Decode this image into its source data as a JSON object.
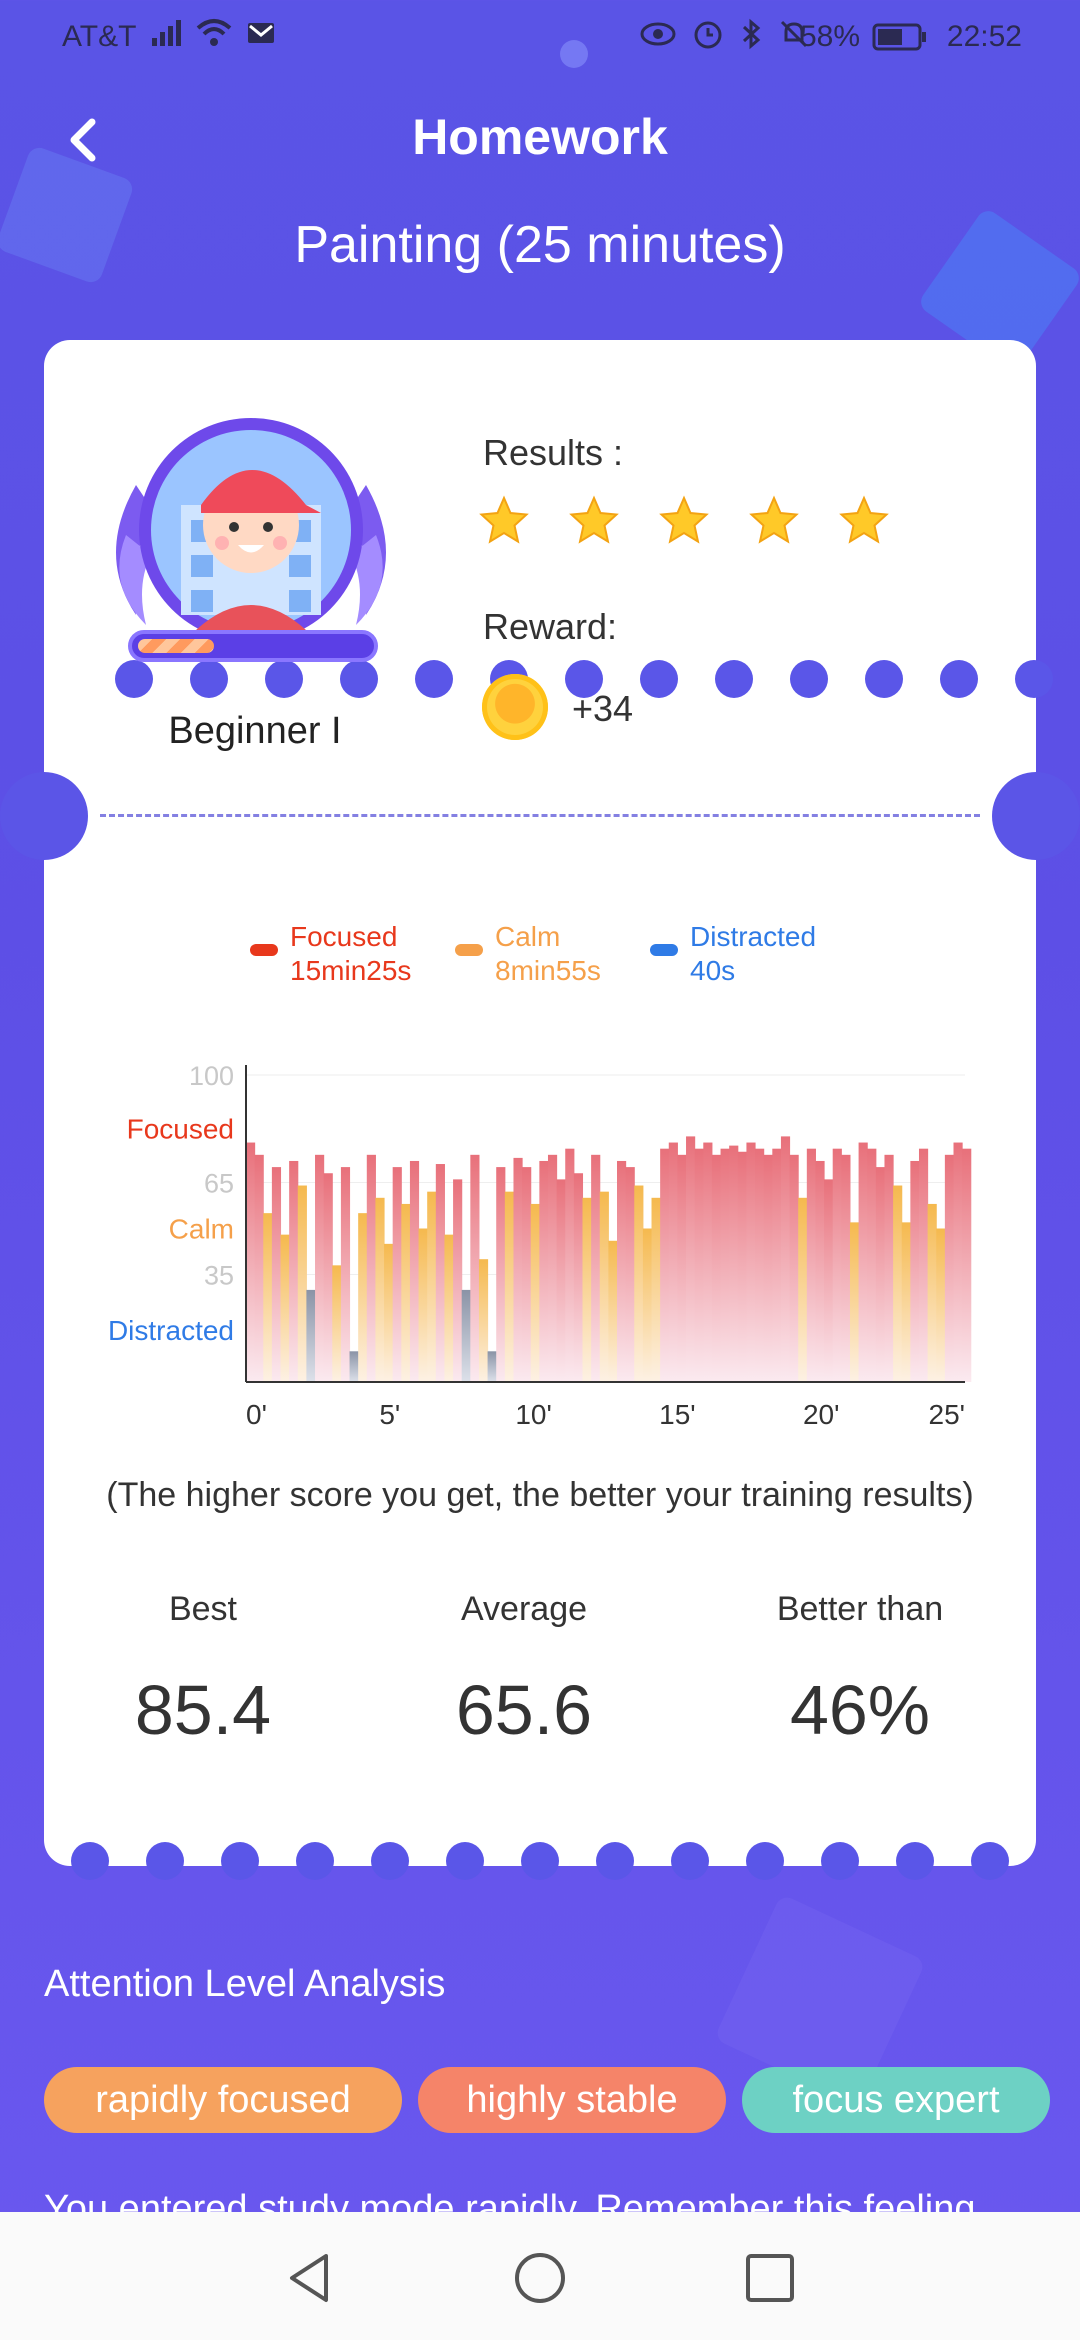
{
  "status_bar": {
    "carrier": "AT&T",
    "battery": "58%",
    "time": "22:52",
    "icons_left": [
      "signal-icon",
      "wifi-icon",
      "mail-icon"
    ],
    "icons_right": [
      "eye-icon",
      "alarm-icon",
      "bluetooth-icon",
      "mute-icon",
      "battery-icon"
    ]
  },
  "header": {
    "title": "Homework",
    "subtitle": "Painting (25 minutes)"
  },
  "profile": {
    "level_name": "Beginner I",
    "level_progress": 0.33
  },
  "results": {
    "label": "Results :",
    "stars": 5
  },
  "reward": {
    "label": "Reward:",
    "value": "+34"
  },
  "legend": [
    {
      "name": "Focused",
      "time": "15min25s",
      "color": "#e8381c"
    },
    {
      "name": "Calm",
      "time": "8min55s",
      "color": "#f5a04a"
    },
    {
      "name": "Distracted",
      "time": "40s",
      "color": "#2f7be6"
    }
  ],
  "chart_data": {
    "type": "area",
    "y_tick_labels": [
      "100",
      "65",
      "35"
    ],
    "y_band_labels": [
      "Focused",
      "Calm",
      "Distracted"
    ],
    "x_tick_labels": [
      "0'",
      "5'",
      "10'",
      "15'",
      "20'",
      "25'"
    ],
    "xlim": [
      0,
      25
    ],
    "ylim": [
      0,
      100
    ],
    "x": [
      0,
      0.3,
      0.6,
      0.9,
      1.2,
      1.5,
      1.8,
      2.1,
      2.4,
      2.7,
      3.0,
      3.3,
      3.6,
      3.9,
      4.2,
      4.5,
      4.8,
      5.1,
      5.4,
      5.7,
      6.0,
      6.3,
      6.6,
      6.9,
      7.2,
      7.5,
      7.8,
      8.1,
      8.4,
      8.7,
      9.0,
      9.3,
      9.6,
      9.9,
      10.2,
      10.5,
      10.8,
      11.1,
      11.4,
      11.7,
      12.0,
      12.3,
      12.6,
      12.9,
      13.2,
      13.5,
      13.8,
      14.1,
      14.4,
      14.7,
      15.0,
      15.3,
      15.6,
      15.9,
      16.2,
      16.5,
      16.8,
      17.1,
      17.4,
      17.7,
      18.0,
      18.3,
      18.6,
      18.9,
      19.2,
      19.5,
      19.8,
      20.1,
      20.4,
      20.7,
      21.0,
      21.3,
      21.6,
      21.9,
      22.2,
      22.5,
      22.8,
      23.1,
      23.4,
      23.7,
      24.0,
      24.3,
      24.6,
      24.9
    ],
    "values": [
      78,
      74,
      55,
      70,
      48,
      72,
      64,
      30,
      74,
      68,
      38,
      70,
      10,
      55,
      74,
      60,
      45,
      70,
      58,
      72,
      50,
      62,
      71,
      48,
      66,
      30,
      74,
      40,
      10,
      70,
      62,
      73,
      70,
      58,
      72,
      74,
      66,
      76,
      68,
      60,
      74,
      62,
      46,
      72,
      70,
      64,
      50,
      60,
      76,
      78,
      74,
      80,
      76,
      78,
      74,
      76,
      77,
      75,
      78,
      76,
      74,
      76,
      80,
      74,
      60,
      76,
      72,
      66,
      76,
      74,
      52,
      78,
      76,
      70,
      74,
      64,
      52,
      72,
      76,
      58,
      50,
      74,
      78,
      76
    ],
    "series_colors": {
      "focused": "#e8707a",
      "calm": "#f5b94e",
      "distracted": "#8a93a6"
    }
  },
  "note": "(The higher score you get, the better your training results)",
  "stats": [
    {
      "label": "Best",
      "value": "85.4"
    },
    {
      "label": "Average",
      "value": "65.6"
    },
    {
      "label": "Better than",
      "value": "46%"
    }
  ],
  "analysis": {
    "title": "Attention Level Analysis",
    "tags": [
      {
        "label": "rapidly focused",
        "color": "#f6a25e"
      },
      {
        "label": "highly stable",
        "color": "#f58469"
      },
      {
        "label": "focus expert",
        "color": "#6dd1c4"
      }
    ],
    "description": "You entered study mode rapidly. Remember this feeling"
  }
}
